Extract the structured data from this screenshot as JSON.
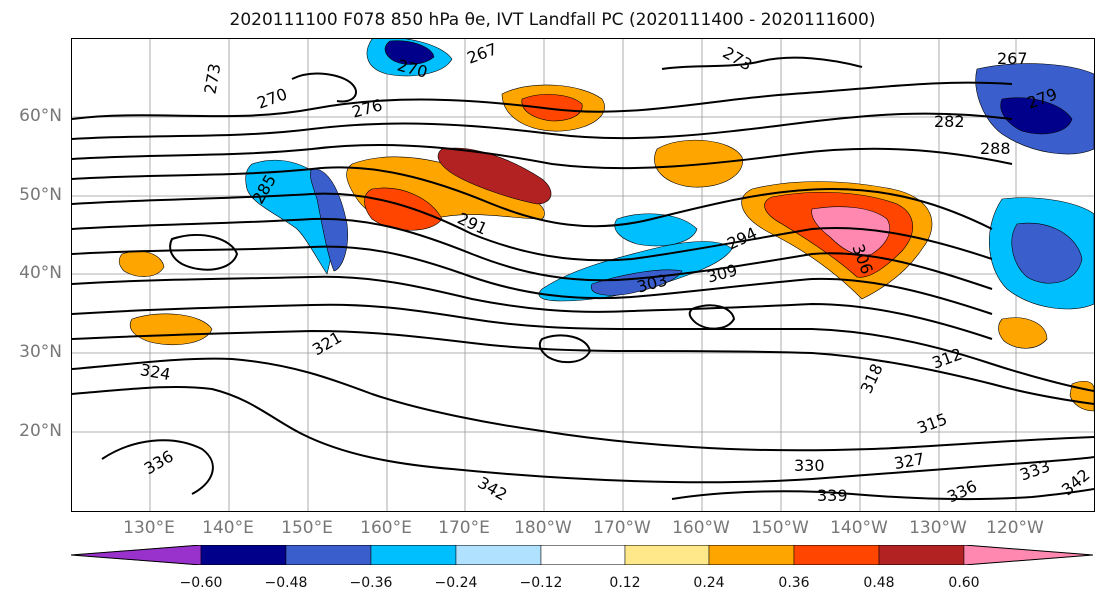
{
  "title": "2020111100 F078 850 hPa θe, IVT Landfall PC (2020111400 - 2020111600)",
  "lat_labels": [
    "60°N",
    "50°N",
    "40°N",
    "30°N",
    "20°N"
  ],
  "lon_labels": [
    "130°E",
    "140°E",
    "150°E",
    "160°E",
    "170°E",
    "180°W",
    "170°W",
    "160°W",
    "150°W",
    "140°W",
    "130°W",
    "120°W"
  ],
  "contour_labels": [
    "273",
    "270",
    "270",
    "267",
    "276",
    "273",
    "267",
    "279",
    "282",
    "288",
    "291",
    "294",
    "303",
    "309",
    "306",
    "321",
    "324",
    "318",
    "312",
    "315",
    "327",
    "330",
    "333",
    "336",
    "339",
    "342",
    "342",
    "336",
    "285"
  ],
  "colorbar": {
    "ticks": [
      "−0.60",
      "−0.48",
      "−0.36",
      "−0.24",
      "−0.12",
      "0.12",
      "0.24",
      "0.36",
      "0.48",
      "0.60"
    ],
    "colors": [
      "#9932cc",
      "#00008b",
      "#3a5fcd",
      "#00bfff",
      "#b0e2ff",
      "#ffffff",
      "#ffe88a",
      "#ffa500",
      "#ff4500",
      "#b22222",
      "#ff88b0",
      "#ff88b0"
    ]
  }
}
